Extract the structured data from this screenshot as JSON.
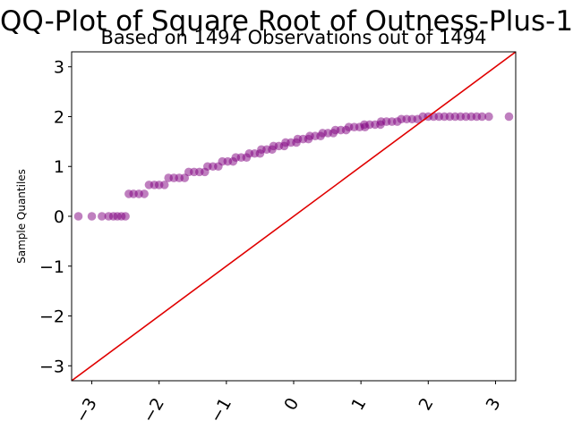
{
  "chart_data": {
    "type": "scatter",
    "title": "QQ-Plot of Square Root of Outness-Plus-1",
    "subtitle": "Based on 1494 Observations out of 1494",
    "xlabel": "",
    "ylabel": "Sample Quantiles",
    "xlim": [
      -3.3,
      3.3
    ],
    "ylim": [
      -3.3,
      3.3
    ],
    "x_ticks": [
      {
        "value": -3,
        "label": "−3"
      },
      {
        "value": -2,
        "label": "−2"
      },
      {
        "value": -1,
        "label": "−1"
      },
      {
        "value": 0,
        "label": "0"
      },
      {
        "value": 1,
        "label": "1"
      },
      {
        "value": 2,
        "label": "2"
      },
      {
        "value": 3,
        "label": "3"
      }
    ],
    "y_ticks": [
      {
        "value": -3,
        "label": "−3"
      },
      {
        "value": -2,
        "label": "−2"
      },
      {
        "value": -1,
        "label": "−1"
      },
      {
        "value": 0,
        "label": "0"
      },
      {
        "value": 1,
        "label": "1"
      },
      {
        "value": 2,
        "label": "2"
      },
      {
        "value": 3,
        "label": "3"
      }
    ],
    "reference_line": {
      "slope": 1,
      "intercept": 0,
      "color": "#e00000"
    },
    "point_color": "#800080",
    "points": [
      {
        "x": -3.2,
        "y": 0
      },
      {
        "x": -3.0,
        "y": 0
      },
      {
        "x": -2.85,
        "y": 0
      },
      {
        "x": -2.75,
        "y": 0
      },
      {
        "x": -2.68,
        "y": 0
      },
      {
        "x": -2.62,
        "y": 0
      },
      {
        "x": -2.56,
        "y": 0
      },
      {
        "x": -2.5,
        "y": 0
      },
      {
        "x": -2.45,
        "y": 0.45
      },
      {
        "x": -2.38,
        "y": 0.45
      },
      {
        "x": -2.3,
        "y": 0.45
      },
      {
        "x": -2.22,
        "y": 0.45
      },
      {
        "x": -2.15,
        "y": 0.63
      },
      {
        "x": -2.07,
        "y": 0.63
      },
      {
        "x": -2.0,
        "y": 0.63
      },
      {
        "x": -1.92,
        "y": 0.63
      },
      {
        "x": -1.86,
        "y": 0.77
      },
      {
        "x": -1.78,
        "y": 0.77
      },
      {
        "x": -1.7,
        "y": 0.77
      },
      {
        "x": -1.62,
        "y": 0.77
      },
      {
        "x": -1.56,
        "y": 0.89
      },
      {
        "x": -1.48,
        "y": 0.89
      },
      {
        "x": -1.4,
        "y": 0.89
      },
      {
        "x": -1.32,
        "y": 0.89
      },
      {
        "x": -1.28,
        "y": 1.0
      },
      {
        "x": -1.2,
        "y": 1.0
      },
      {
        "x": -1.12,
        "y": 1.0
      },
      {
        "x": -1.06,
        "y": 1.1
      },
      {
        "x": -0.98,
        "y": 1.1
      },
      {
        "x": -0.9,
        "y": 1.1
      },
      {
        "x": -0.86,
        "y": 1.18
      },
      {
        "x": -0.78,
        "y": 1.18
      },
      {
        "x": -0.7,
        "y": 1.18
      },
      {
        "x": -0.66,
        "y": 1.26
      },
      {
        "x": -0.58,
        "y": 1.26
      },
      {
        "x": -0.5,
        "y": 1.26
      },
      {
        "x": -0.48,
        "y": 1.34
      },
      {
        "x": -0.4,
        "y": 1.34
      },
      {
        "x": -0.32,
        "y": 1.34
      },
      {
        "x": -0.3,
        "y": 1.41
      },
      {
        "x": -0.22,
        "y": 1.41
      },
      {
        "x": -0.14,
        "y": 1.41
      },
      {
        "x": -0.12,
        "y": 1.48
      },
      {
        "x": -0.04,
        "y": 1.48
      },
      {
        "x": 0.04,
        "y": 1.48
      },
      {
        "x": 0.06,
        "y": 1.55
      },
      {
        "x": 0.14,
        "y": 1.55
      },
      {
        "x": 0.22,
        "y": 1.55
      },
      {
        "x": 0.24,
        "y": 1.61
      },
      {
        "x": 0.32,
        "y": 1.61
      },
      {
        "x": 0.4,
        "y": 1.61
      },
      {
        "x": 0.43,
        "y": 1.67
      },
      {
        "x": 0.51,
        "y": 1.67
      },
      {
        "x": 0.59,
        "y": 1.67
      },
      {
        "x": 0.62,
        "y": 1.73
      },
      {
        "x": 0.7,
        "y": 1.73
      },
      {
        "x": 0.78,
        "y": 1.73
      },
      {
        "x": 0.82,
        "y": 1.79
      },
      {
        "x": 0.9,
        "y": 1.79
      },
      {
        "x": 0.98,
        "y": 1.79
      },
      {
        "x": 1.06,
        "y": 1.79
      },
      {
        "x": 1.05,
        "y": 1.84
      },
      {
        "x": 1.13,
        "y": 1.84
      },
      {
        "x": 1.21,
        "y": 1.84
      },
      {
        "x": 1.29,
        "y": 1.84
      },
      {
        "x": 1.3,
        "y": 1.9
      },
      {
        "x": 1.38,
        "y": 1.9
      },
      {
        "x": 1.46,
        "y": 1.9
      },
      {
        "x": 1.54,
        "y": 1.9
      },
      {
        "x": 1.6,
        "y": 1.95
      },
      {
        "x": 1.68,
        "y": 1.95
      },
      {
        "x": 1.76,
        "y": 1.95
      },
      {
        "x": 1.84,
        "y": 1.95
      },
      {
        "x": 1.92,
        "y": 2.0
      },
      {
        "x": 2.0,
        "y": 2.0
      },
      {
        "x": 2.08,
        "y": 2.0
      },
      {
        "x": 2.16,
        "y": 2.0
      },
      {
        "x": 2.24,
        "y": 2.0
      },
      {
        "x": 2.32,
        "y": 2.0
      },
      {
        "x": 2.4,
        "y": 2.0
      },
      {
        "x": 2.48,
        "y": 2.0
      },
      {
        "x": 2.56,
        "y": 2.0
      },
      {
        "x": 2.64,
        "y": 2.0
      },
      {
        "x": 2.72,
        "y": 2.0
      },
      {
        "x": 2.8,
        "y": 2.0
      },
      {
        "x": 2.9,
        "y": 2.0
      },
      {
        "x": 3.2,
        "y": 2.0
      }
    ]
  }
}
